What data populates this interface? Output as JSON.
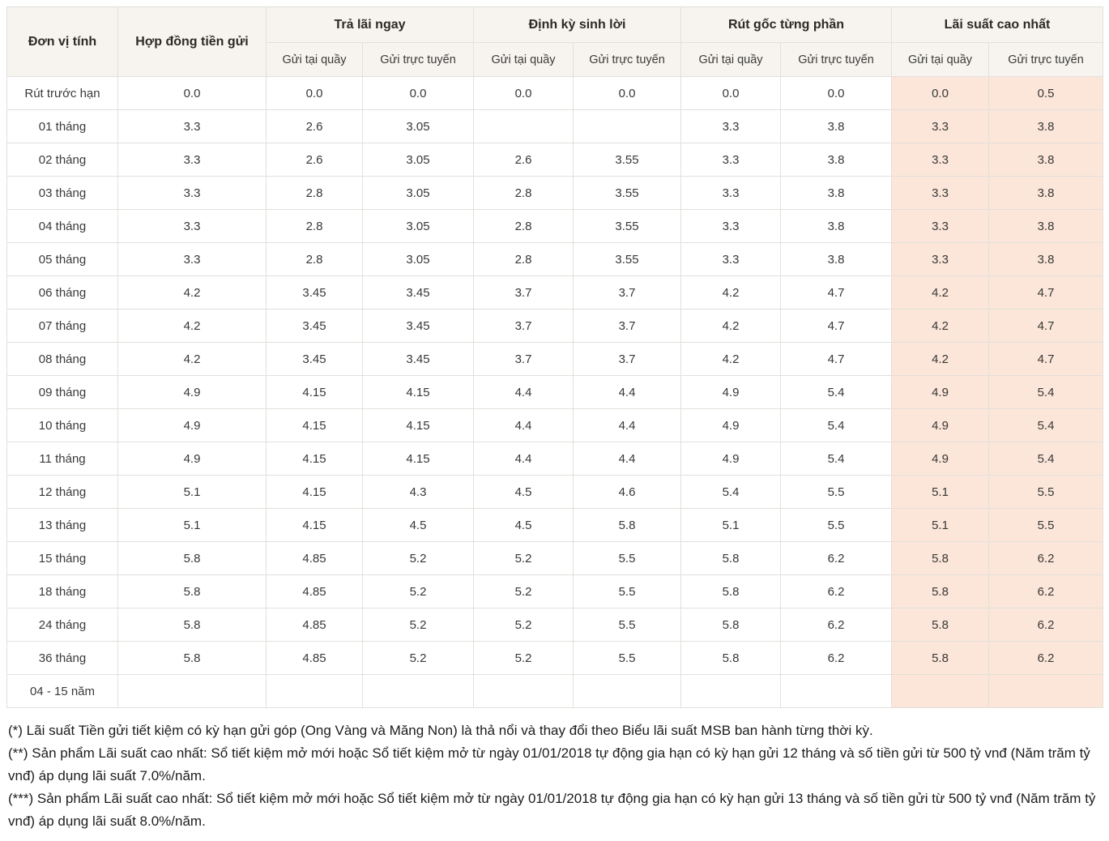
{
  "table": {
    "col1_header": "Đơn vị tính",
    "col2_header": "Hợp đồng tiền gửi",
    "groups": [
      {
        "label": "Trả lãi ngay"
      },
      {
        "label": "Định kỳ sinh lời"
      },
      {
        "label": "Rút gốc từng phần"
      },
      {
        "label": "Lãi suất cao nhất"
      }
    ],
    "sub_headers": [
      "Gửi tại quầy",
      "Gửi trực tuyến"
    ],
    "rows": [
      {
        "label": "Rút trước hạn",
        "values": [
          "0.0",
          "0.0",
          "0.0",
          "0.0",
          "0.0",
          "0.0",
          "0.0",
          "0.0",
          "0.5"
        ]
      },
      {
        "label": "01 tháng",
        "values": [
          "3.3",
          "2.6",
          "3.05",
          "",
          "",
          "3.3",
          "3.8",
          "3.3",
          "3.8"
        ]
      },
      {
        "label": "02 tháng",
        "values": [
          "3.3",
          "2.6",
          "3.05",
          "2.6",
          "3.55",
          "3.3",
          "3.8",
          "3.3",
          "3.8"
        ]
      },
      {
        "label": "03 tháng",
        "values": [
          "3.3",
          "2.8",
          "3.05",
          "2.8",
          "3.55",
          "3.3",
          "3.8",
          "3.3",
          "3.8"
        ]
      },
      {
        "label": "04 tháng",
        "values": [
          "3.3",
          "2.8",
          "3.05",
          "2.8",
          "3.55",
          "3.3",
          "3.8",
          "3.3",
          "3.8"
        ]
      },
      {
        "label": "05 tháng",
        "values": [
          "3.3",
          "2.8",
          "3.05",
          "2.8",
          "3.55",
          "3.3",
          "3.8",
          "3.3",
          "3.8"
        ]
      },
      {
        "label": "06 tháng",
        "values": [
          "4.2",
          "3.45",
          "3.45",
          "3.7",
          "3.7",
          "4.2",
          "4.7",
          "4.2",
          "4.7"
        ]
      },
      {
        "label": "07 tháng",
        "values": [
          "4.2",
          "3.45",
          "3.45",
          "3.7",
          "3.7",
          "4.2",
          "4.7",
          "4.2",
          "4.7"
        ]
      },
      {
        "label": "08 tháng",
        "values": [
          "4.2",
          "3.45",
          "3.45",
          "3.7",
          "3.7",
          "4.2",
          "4.7",
          "4.2",
          "4.7"
        ]
      },
      {
        "label": "09 tháng",
        "values": [
          "4.9",
          "4.15",
          "4.15",
          "4.4",
          "4.4",
          "4.9",
          "5.4",
          "4.9",
          "5.4"
        ]
      },
      {
        "label": "10 tháng",
        "values": [
          "4.9",
          "4.15",
          "4.15",
          "4.4",
          "4.4",
          "4.9",
          "5.4",
          "4.9",
          "5.4"
        ]
      },
      {
        "label": "11 tháng",
        "values": [
          "4.9",
          "4.15",
          "4.15",
          "4.4",
          "4.4",
          "4.9",
          "5.4",
          "4.9",
          "5.4"
        ]
      },
      {
        "label": "12 tháng",
        "values": [
          "5.1",
          "4.15",
          "4.3",
          "4.5",
          "4.6",
          "5.4",
          "5.5",
          "5.1",
          "5.5"
        ]
      },
      {
        "label": "13 tháng",
        "values": [
          "5.1",
          "4.15",
          "4.5",
          "4.5",
          "5.8",
          "5.1",
          "5.5",
          "5.1",
          "5.5"
        ]
      },
      {
        "label": "15 tháng",
        "values": [
          "5.8",
          "4.85",
          "5.2",
          "5.2",
          "5.5",
          "5.8",
          "6.2",
          "5.8",
          "6.2"
        ]
      },
      {
        "label": "18 tháng",
        "values": [
          "5.8",
          "4.85",
          "5.2",
          "5.2",
          "5.5",
          "5.8",
          "6.2",
          "5.8",
          "6.2"
        ]
      },
      {
        "label": "24 tháng",
        "values": [
          "5.8",
          "4.85",
          "5.2",
          "5.2",
          "5.5",
          "5.8",
          "6.2",
          "5.8",
          "6.2"
        ]
      },
      {
        "label": "36 tháng",
        "values": [
          "5.8",
          "4.85",
          "5.2",
          "5.2",
          "5.5",
          "5.8",
          "6.2",
          "5.8",
          "6.2"
        ]
      },
      {
        "label": "04 - 15 năm",
        "values": [
          "",
          "",
          "",
          "",
          "",
          "",
          "",
          "",
          ""
        ]
      }
    ]
  },
  "footnotes": [
    "(*) Lãi suất Tiền gửi tiết kiệm có kỳ hạn gửi góp (Ong Vàng và Măng Non) là thả nổi và thay đổi theo Biểu lãi suất MSB ban hành từng thời kỳ.",
    "(**) Sản phẩm Lãi suất cao nhất: Sổ tiết kiệm mở mới hoặc Sổ tiết kiệm mở từ ngày 01/01/2018 tự động gia hạn có kỳ hạn gửi 12 tháng và số tiền gửi từ 500 tỷ vnđ (Năm trăm tỷ vnđ) áp dụng lãi suất 7.0%/năm.",
    "(***) Sản phẩm Lãi suất cao nhất: Sổ tiết kiệm mở mới hoặc Sổ tiết kiệm mở từ ngày 01/01/2018 tự động gia hạn có kỳ hạn gửi 13 tháng và số tiền gửi từ 500 tỷ vnđ (Năm trăm tỷ vnđ) áp dụng lãi suất 8.0%/năm."
  ],
  "colors": {
    "header_bg": "#f7f4ef",
    "highlight_bg": "#fce6d9",
    "border": "#e2e0dc"
  }
}
